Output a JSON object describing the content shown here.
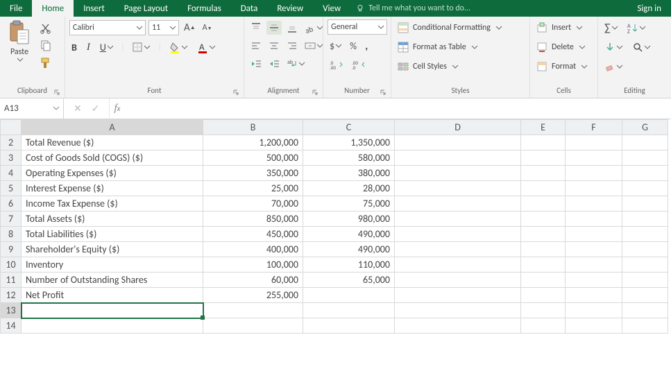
{
  "colors": {
    "brand": "#0e6b3b",
    "ribbon_bg": "#f3f3f3",
    "grid_border": "#d9d9d9",
    "selection": "#1f7246"
  },
  "tabs": {
    "file": "File",
    "home": "Home",
    "insert": "Insert",
    "pagelayout": "Page Layout",
    "formulas": "Formulas",
    "data": "Data",
    "review": "Review",
    "view": "View"
  },
  "tellme": "Tell me what you want to do...",
  "signin": "Sign in",
  "ribbon": {
    "clipboard": {
      "label": "Clipboard",
      "paste": "Paste"
    },
    "font": {
      "label": "Font",
      "name": "Calibri",
      "size": "11",
      "bold": "B",
      "italic": "I",
      "underline": "U"
    },
    "alignment": {
      "label": "Alignment"
    },
    "number": {
      "label": "Number",
      "format": "General"
    },
    "styles": {
      "label": "Styles",
      "cond": "Conditional Formatting",
      "table": "Format as Table",
      "cell": "Cell Styles"
    },
    "cells": {
      "label": "Cells",
      "insert": "Insert",
      "delete": "Delete",
      "format": "Format"
    },
    "editing": {
      "label": "Editing"
    }
  },
  "namebox": "A13",
  "columns": [
    "A",
    "B",
    "C",
    "D",
    "E",
    "F",
    "G"
  ],
  "selected_cell": {
    "row": 13,
    "col": "A"
  },
  "rows": [
    {
      "n": 2,
      "A": "Total Revenue ($)",
      "B": "1,200,000",
      "C": "1,350,000"
    },
    {
      "n": 3,
      "A": "Cost of Goods Sold (COGS) ($)",
      "B": "500,000",
      "C": "580,000"
    },
    {
      "n": 4,
      "A": "Operating Expenses ($)",
      "B": "350,000",
      "C": "380,000"
    },
    {
      "n": 5,
      "A": "Interest Expense ($)",
      "B": "25,000",
      "C": "28,000"
    },
    {
      "n": 6,
      "A": "Income Tax Expense ($)",
      "B": "70,000",
      "C": "75,000"
    },
    {
      "n": 7,
      "A": "Total Assets ($)",
      "B": "850,000",
      "C": "980,000"
    },
    {
      "n": 8,
      "A": "Total Liabilities ($)",
      "B": "450,000",
      "C": "490,000"
    },
    {
      "n": 9,
      "A": "Shareholder's Equity ($)",
      "B": "400,000",
      "C": "490,000"
    },
    {
      "n": 10,
      "A": "Inventory",
      "B": "100,000",
      "C": "110,000"
    },
    {
      "n": 11,
      "A": "Number of Outstanding Shares",
      "B": "60,000",
      "C": "65,000"
    },
    {
      "n": 12,
      "A": "Net Profit",
      "B": "255,000",
      "C": ""
    },
    {
      "n": 13,
      "A": "",
      "B": "",
      "C": ""
    },
    {
      "n": 14,
      "A": "",
      "B": "",
      "C": ""
    }
  ]
}
